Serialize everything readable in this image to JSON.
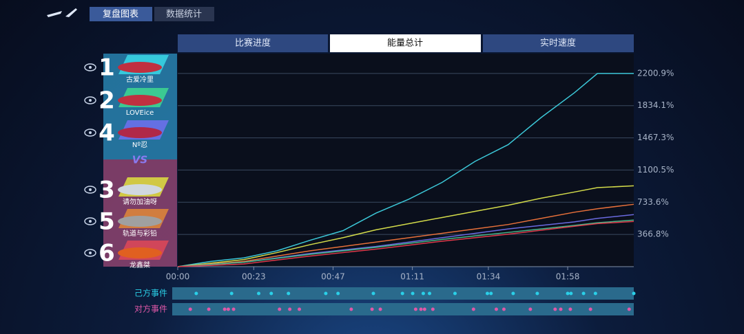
{
  "header": {
    "tabs": [
      "复盘图表",
      "数据统计"
    ]
  },
  "chart_tabs": [
    "比赛进度",
    "能量总计",
    "实时速度"
  ],
  "players": {
    "team": [
      {
        "rank": "1",
        "name": "古爱冷里"
      },
      {
        "rank": "2",
        "name": "LOVEice"
      },
      {
        "rank": "4",
        "name": "Nº忍"
      }
    ],
    "vs": "VS",
    "opponents": [
      {
        "rank": "3",
        "name": "请勿加油呀"
      },
      {
        "rank": "5",
        "name": "轨道与彩铅"
      },
      {
        "rank": "6",
        "name": "龙鑫桀"
      }
    ]
  },
  "chart_data": {
    "type": "line",
    "x": [
      0,
      10,
      20,
      30,
      40,
      50,
      60,
      70,
      80,
      90,
      100,
      110,
      120,
      127,
      138
    ],
    "xlim": [
      0,
      138
    ],
    "xticks": [
      {
        "value": 0,
        "label": "00:00"
      },
      {
        "value": 23,
        "label": "00:23"
      },
      {
        "value": 47,
        "label": "00:47"
      },
      {
        "value": 71,
        "label": "01:11"
      },
      {
        "value": 94,
        "label": "01:34"
      },
      {
        "value": 118,
        "label": "01:58"
      }
    ],
    "ylim": [
      0,
      2427
    ],
    "yticks": [
      {
        "value": 366.8,
        "label": "366.8%"
      },
      {
        "value": 733.6,
        "label": "733.6%"
      },
      {
        "value": 1100.5,
        "label": "1100.5%"
      },
      {
        "value": 1467.3,
        "label": "1467.3%"
      },
      {
        "value": 1834.1,
        "label": "1834.1%"
      },
      {
        "value": 2200.9,
        "label": "2200.9%"
      }
    ],
    "grid": true,
    "series": [
      {
        "color": "#3cc8d8",
        "values": [
          0,
          60,
          100,
          180,
          300,
          410,
          610,
          770,
          960,
          1200,
          1390,
          1700,
          1980,
          2200.9,
          2200.9
        ]
      },
      {
        "color": "#d4dc4a",
        "values": [
          0,
          40,
          80,
          160,
          250,
          330,
          420,
          490,
          560,
          630,
          700,
          780,
          850,
          900,
          921
        ]
      },
      {
        "color": "#e8703a",
        "values": [
          0,
          30,
          60,
          120,
          180,
          230,
          280,
          330,
          380,
          430,
          480,
          550,
          620,
          660,
          710
        ]
      },
      {
        "color": "#6a6ae0",
        "values": [
          0,
          25,
          50,
          100,
          150,
          190,
          230,
          280,
          330,
          380,
          430,
          470,
          510,
          550,
          593
        ]
      },
      {
        "color": "#4ab88a",
        "values": [
          0,
          25,
          50,
          95,
          140,
          180,
          220,
          265,
          310,
          350,
          390,
          430,
          470,
          500,
          530
        ]
      },
      {
        "color": "#e03a4a",
        "values": [
          0,
          15,
          30,
          75,
          120,
          160,
          200,
          245,
          290,
          330,
          370,
          415,
          460,
          490,
          515
        ]
      }
    ]
  },
  "events": {
    "own": {
      "label": "己方事件",
      "color": "#2ad0e8",
      "times": [
        5.6,
        16.3,
        24.5,
        28.3,
        33.5,
        44.8,
        48.5,
        59.2,
        68,
        71.1,
        74.3,
        76.2,
        83.9,
        93.7,
        94.8,
        101.5,
        108.8,
        118,
        119,
        122.8,
        126.4,
        138
      ]
    },
    "opponent": {
      "label": "对方事件",
      "color": "#e058a8",
      "times": [
        3.8,
        9.4,
        14.2,
        15.3,
        16.9,
        30.8,
        33.9,
        36.8,
        52.5,
        58.8,
        61.3,
        72,
        73.6,
        74.7,
        77.2,
        89.5,
        96.4,
        98.7,
        106.7,
        114.2,
        115.9,
        118.8,
        124.9,
        136.6
      ]
    }
  }
}
